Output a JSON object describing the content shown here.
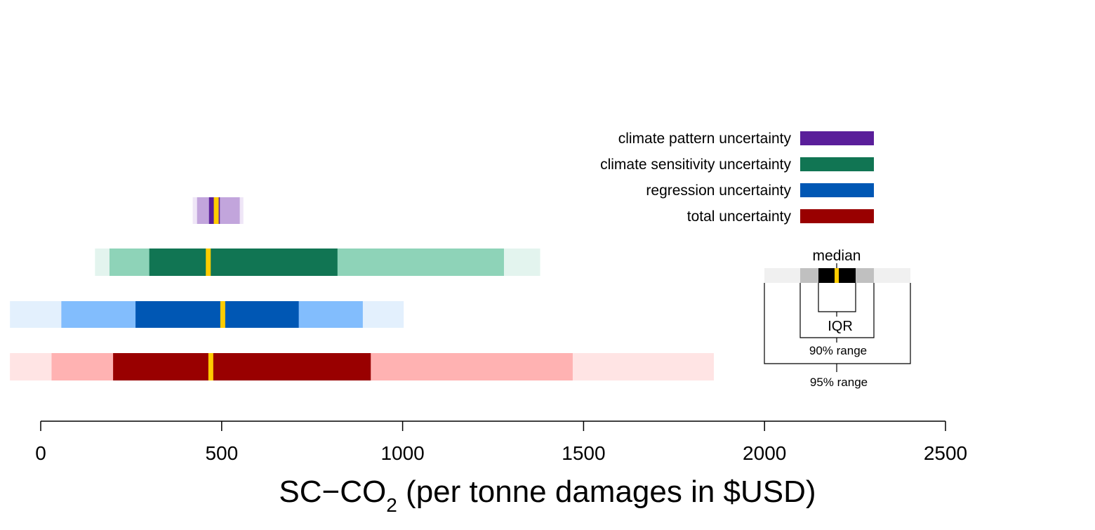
{
  "chart_data": {
    "type": "bar",
    "subtype": "horizontal-quantile-range",
    "xlabel_main": "SC−CO",
    "xlabel_sub": "2",
    "xlabel_rest": " (per tonne damages in $USD)",
    "xlim": [
      0,
      2500
    ],
    "x_ticks": [
      {
        "value": 0,
        "label": "0"
      },
      {
        "value": 500,
        "label": "500"
      },
      {
        "value": 1000,
        "label": "1000"
      },
      {
        "value": 1500,
        "label": "1500"
      },
      {
        "value": 2000,
        "label": "2000"
      },
      {
        "value": 2500,
        "label": "2500"
      }
    ],
    "grid": false,
    "legend_position": "top-right",
    "series": [
      {
        "name": "climate pattern uncertainty",
        "color": "#5a1e9a",
        "shade_90": "#c2a5dc",
        "shade_95": "#efe6f7",
        "p2_5": 420,
        "p5": 432,
        "p25": 465,
        "median": 485,
        "p75": 495,
        "p95": 550,
        "p97_5": 560
      },
      {
        "name": "climate sensitivity uncertainty",
        "color": "#117553",
        "shade_90": "#8ed3b8",
        "shade_95": "#e3f4ee",
        "p2_5": 150,
        "p5": 190,
        "p25": 300,
        "median": 463,
        "p75": 820,
        "p95": 1280,
        "p97_5": 1380
      },
      {
        "name": "regression uncertainty",
        "color": "#0057b4",
        "shade_90": "#82bdfd",
        "shade_95": "#e3f0fd",
        "p2_5": -85,
        "p5": 57,
        "p25": 262,
        "median": 503,
        "p75": 713,
        "p95": 890,
        "p97_5": 1003
      },
      {
        "name": "total uncertainty",
        "color": "#990000",
        "shade_90": "#ffb2b2",
        "shade_95": "#ffe4e4",
        "p2_5": -85,
        "p5": 30,
        "p25": 200,
        "median": 470,
        "p75": 912,
        "p95": 1470,
        "p97_5": 1860
      }
    ],
    "median_color": "#ffcc00",
    "key": {
      "median_label": "median",
      "iqr_label": "IQR",
      "range90_label": "90% range",
      "range95_label": "95% range",
      "color_95": "#f0f0f0",
      "color_90": "#c0c0c0",
      "color_iqr": "#000000"
    }
  }
}
